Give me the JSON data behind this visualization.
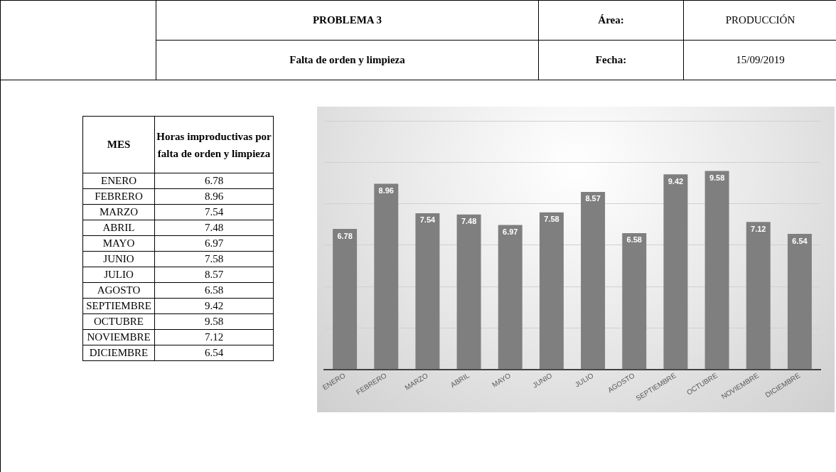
{
  "chart_data": [
    {
      "type": "bar",
      "annotations": [
        "PROBLEMA 3",
        "Falta de orden y limpieza",
        "Área:",
        "PRODUCCIÓN",
        "Fecha:",
        "15/09/2019"
      ],
      "categories": [
        "ENERO",
        "FEBRERO",
        "MARZO",
        "ABRIL",
        "MAYO",
        "JUNIO",
        "JULIO",
        "AGOSTO",
        "SEPTIEMBRE",
        "OCTUBRE",
        "NOVIEMBRE",
        "DICIEMBRE"
      ],
      "values": [
        6.78,
        8.96,
        7.54,
        7.48,
        6.97,
        7.58,
        8.57,
        6.58,
        9.42,
        9.58,
        7.12,
        6.54
      ],
      "color": "#7f7f7f",
      "data_labels": true,
      "ylim": [
        0,
        12
      ],
      "yticks": [
        {
          "value": 0,
          "label": null
        },
        {
          "value": 2,
          "label": null
        },
        {
          "value": 4,
          "label": null
        },
        {
          "value": 6,
          "label": null
        },
        {
          "value": 8,
          "label": null
        },
        {
          "value": 10,
          "label": null
        },
        {
          "value": 12,
          "label": null
        }
      ],
      "grid": "y",
      "tick_labels": "x"
    },
    {
      "type": "other",
      "xlabel": "MES",
      "ylabel": "Horas improductivas por falta de orden y limpieza",
      "categories": [
        "ENERO",
        "FEBRERO",
        "MARZO",
        "ABRIL",
        "MAYO",
        "JUNIO",
        "JULIO",
        "AGOSTO",
        "SEPTIEMBRE",
        "OCTUBRE",
        "NOVIEMBRE",
        "DICIEMBRE"
      ],
      "values": [
        6.78,
        8.96,
        7.54,
        7.48,
        6.97,
        7.58,
        8.57,
        6.58,
        9.42,
        9.58,
        7.12,
        6.54
      ],
      "data_labels": true
    }
  ]
}
